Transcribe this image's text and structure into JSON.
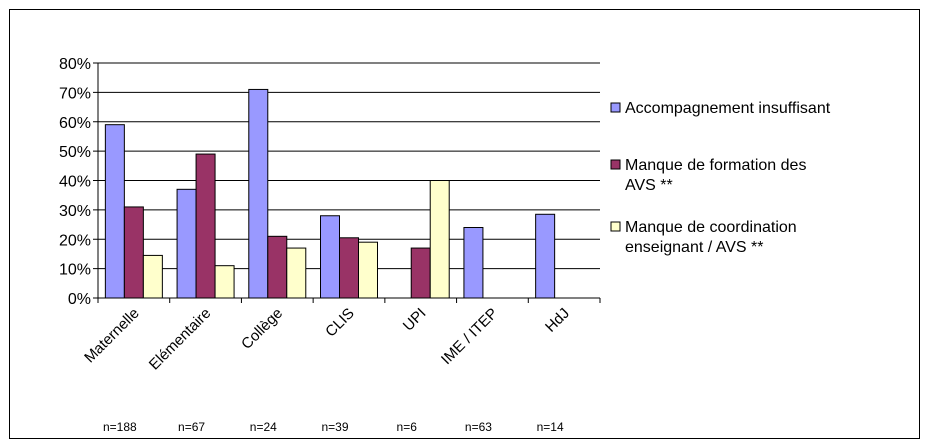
{
  "chart_data": {
    "type": "bar",
    "categories": [
      "Maternelle",
      "Elémentaire",
      "Collège",
      "CLIS",
      "UPI",
      "IME / ITEP",
      "HdJ"
    ],
    "sample_sizes": [
      "n=188",
      "n=67",
      "n=24",
      "n=39",
      "n=6",
      "n=63",
      "n=14"
    ],
    "ylim": [
      0,
      80
    ],
    "yticks": [
      "0%",
      "10%",
      "20%",
      "30%",
      "40%",
      "50%",
      "60%",
      "70%",
      "80%"
    ],
    "series": [
      {
        "name": "Accompagnement insuffisant",
        "lines": [
          "Accompagnement insuffisant"
        ],
        "color": "#9999ff",
        "values": [
          59,
          37,
          71,
          28,
          0,
          24,
          28.5
        ]
      },
      {
        "name": "Manque de formation des AVS **",
        "lines": [
          "Manque de formation des",
          "AVS **"
        ],
        "color": "#993366",
        "values": [
          31,
          49,
          21,
          20.5,
          17,
          0,
          0
        ]
      },
      {
        "name": "Manque de coordination enseignant / AVS **",
        "lines": [
          "Manque de coordination",
          "enseignant / AVS **"
        ],
        "color": "#ffffcc",
        "values": [
          14.5,
          11,
          17,
          19,
          40,
          0,
          0
        ]
      }
    ],
    "grid": true,
    "legend": "right"
  }
}
